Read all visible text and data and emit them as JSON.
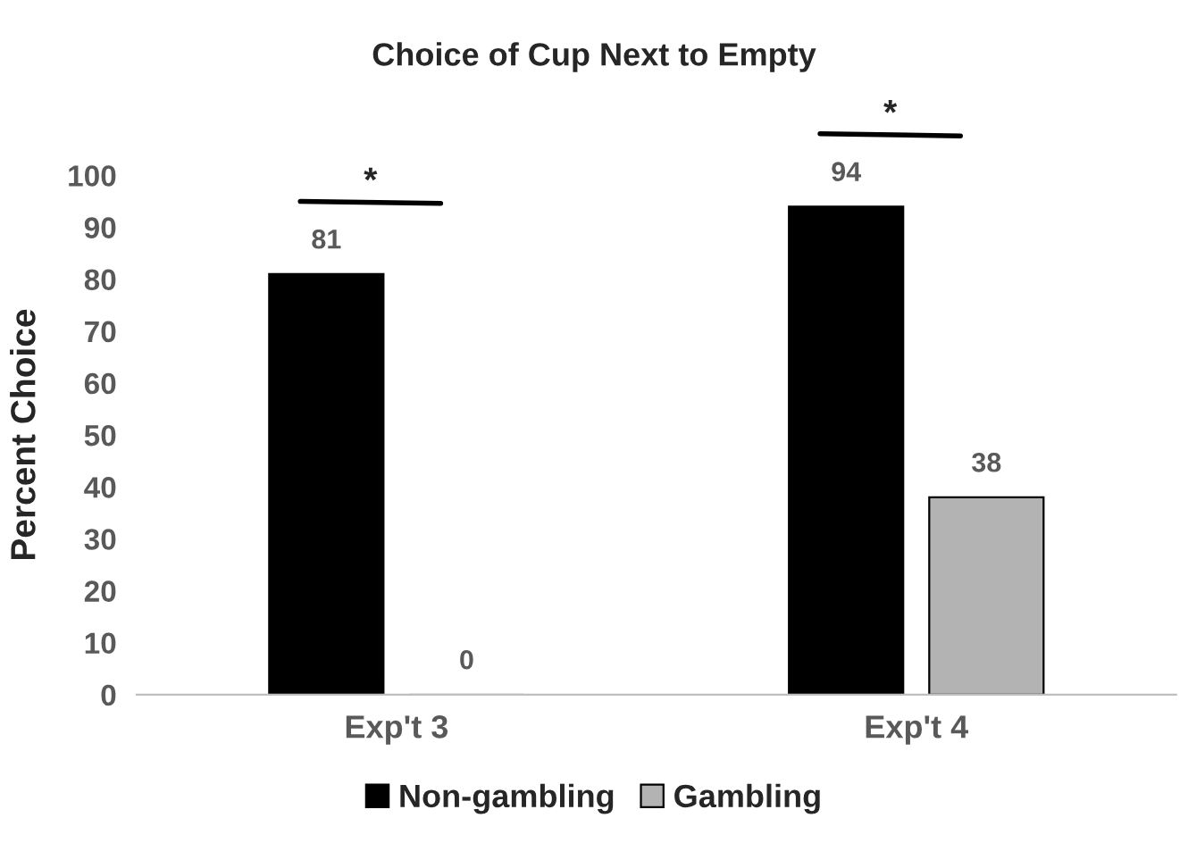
{
  "chart_data": {
    "type": "bar",
    "title": "Choice of Cup Next to Empty",
    "ylabel": "Percent Choice",
    "categories": [
      "Exp't 3",
      "Exp't 4"
    ],
    "series": [
      {
        "name": "Non-gambling",
        "color": "#000000",
        "values": [
          81,
          94
        ]
      },
      {
        "name": "Gambling",
        "color": "#b3b3b3",
        "values": [
          0,
          38
        ]
      }
    ],
    "ylim": [
      0,
      100
    ],
    "yticks": [
      0,
      10,
      20,
      30,
      40,
      50,
      60,
      70,
      80,
      90,
      100
    ],
    "data_labels": true,
    "grid": false,
    "legend": "bottom",
    "annotations": [
      "*",
      "*"
    ]
  }
}
